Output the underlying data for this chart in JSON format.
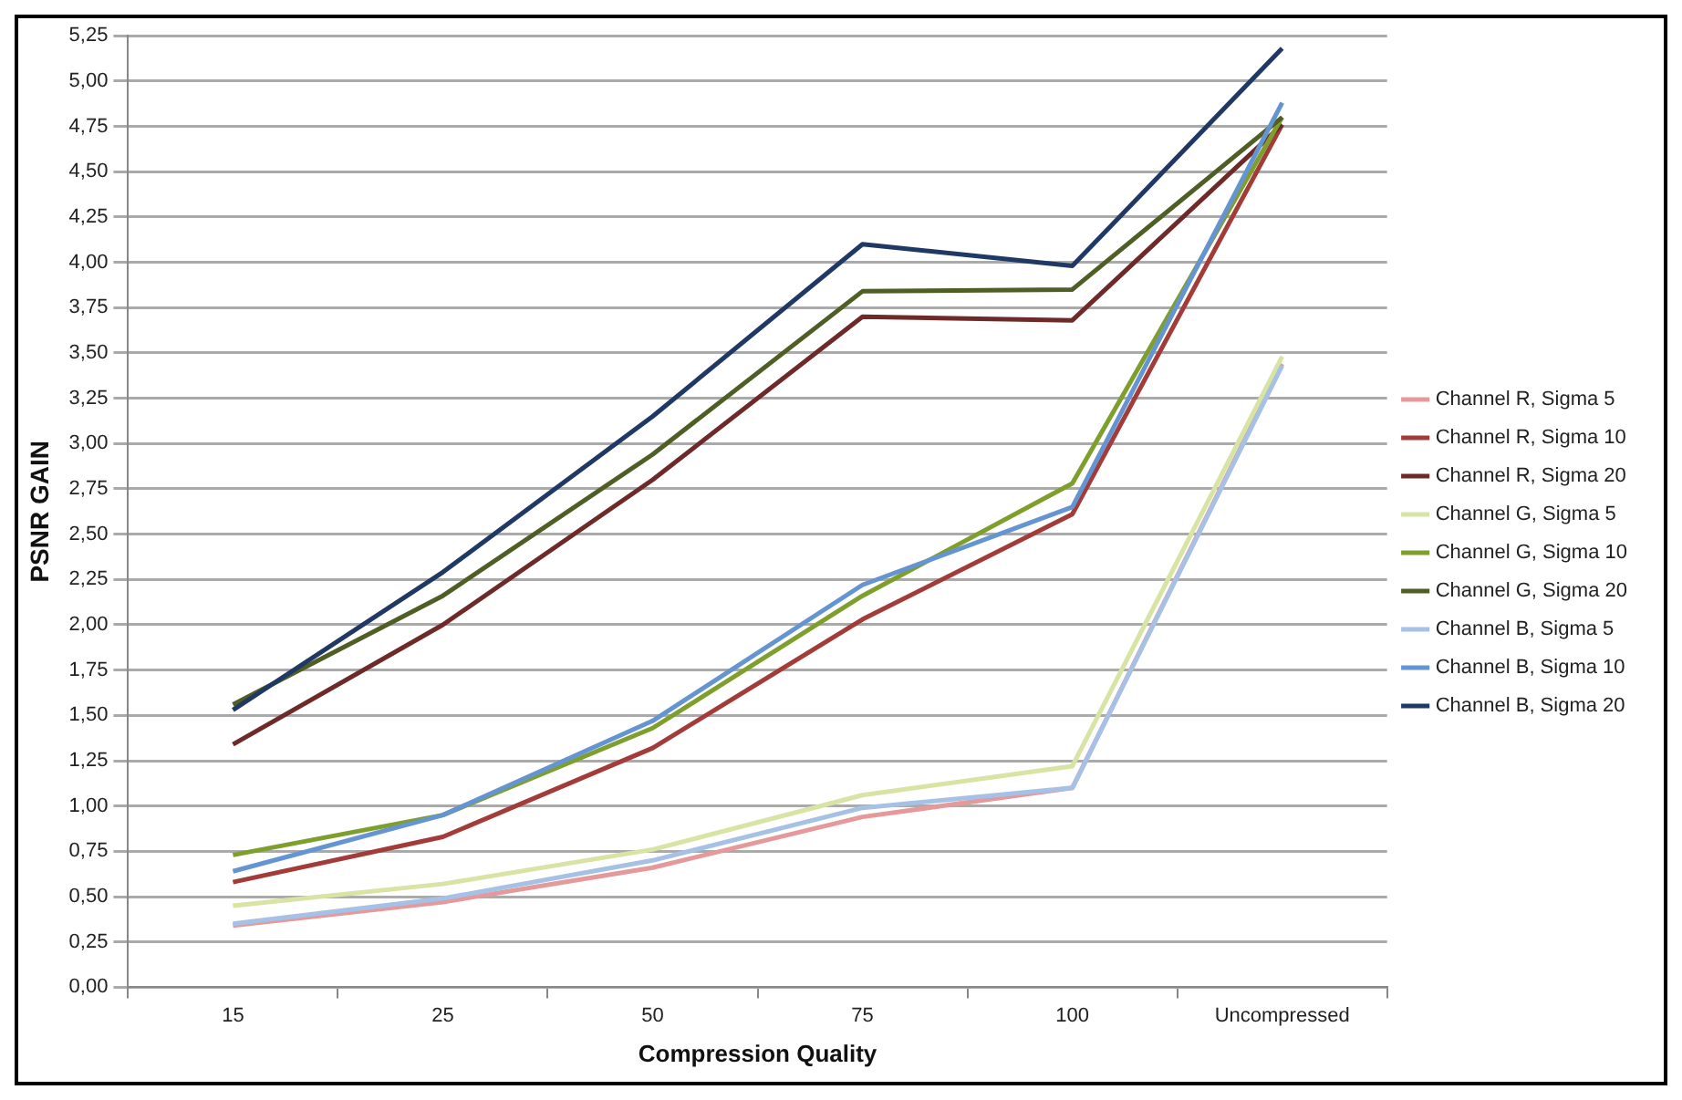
{
  "chart_data": {
    "type": "line",
    "xlabel": "Compression Quality",
    "ylabel": "PSNR GAIN",
    "categories": [
      "15",
      "25",
      "50",
      "75",
      "100",
      "Uncompressed"
    ],
    "series": [
      {
        "name": "Channel R, Sigma 5",
        "color": "#e6999a",
        "values": [
          0.34,
          0.47,
          0.66,
          0.94,
          1.1,
          3.44
        ]
      },
      {
        "name": "Channel R, Sigma 10",
        "color": "#a33b38",
        "values": [
          0.58,
          0.83,
          1.32,
          2.03,
          2.61,
          4.76
        ]
      },
      {
        "name": "Channel R, Sigma 20",
        "color": "#6e2a28",
        "values": [
          1.34,
          2.0,
          2.8,
          3.7,
          3.68,
          4.76
        ]
      },
      {
        "name": "Channel G, Sigma 5",
        "color": "#d7e4a4",
        "values": [
          0.45,
          0.57,
          0.76,
          1.06,
          1.22,
          3.48
        ]
      },
      {
        "name": "Channel G, Sigma 10",
        "color": "#7f9f2d",
        "values": [
          0.73,
          0.95,
          1.43,
          2.16,
          2.78,
          4.8
        ]
      },
      {
        "name": "Channel G, Sigma 20",
        "color": "#4f5e24",
        "values": [
          1.56,
          2.16,
          2.94,
          3.84,
          3.85,
          4.8
        ]
      },
      {
        "name": "Channel B, Sigma 5",
        "color": "#a6c1e6",
        "values": [
          0.35,
          0.49,
          0.7,
          0.99,
          1.1,
          3.43
        ]
      },
      {
        "name": "Channel B, Sigma 10",
        "color": "#6495d2",
        "values": [
          0.64,
          0.95,
          1.47,
          2.22,
          2.65,
          4.88
        ]
      },
      {
        "name": "Channel B, Sigma 20",
        "color": "#1f3864",
        "values": [
          1.53,
          2.29,
          3.15,
          4.1,
          3.98,
          5.18
        ]
      }
    ],
    "ylim": [
      0,
      5.25
    ],
    "yticks": [
      {
        "value": 0,
        "label": "0,00"
      },
      {
        "value": 0.25,
        "label": "0,25"
      },
      {
        "value": 0.5,
        "label": "0,50"
      },
      {
        "value": 0.75,
        "label": "0,75"
      },
      {
        "value": 1,
        "label": "1,00"
      },
      {
        "value": 1.25,
        "label": "1,25"
      },
      {
        "value": 1.5,
        "label": "1,50"
      },
      {
        "value": 1.75,
        "label": "1,75"
      },
      {
        "value": 2,
        "label": "2,00"
      },
      {
        "value": 2.25,
        "label": "2,25"
      },
      {
        "value": 2.5,
        "label": "2,50"
      },
      {
        "value": 2.75,
        "label": "2,75"
      },
      {
        "value": 3,
        "label": "3,00"
      },
      {
        "value": 3.25,
        "label": "3,25"
      },
      {
        "value": 3.5,
        "label": "3,50"
      },
      {
        "value": 3.75,
        "label": "3,75"
      },
      {
        "value": 4,
        "label": "4,00"
      },
      {
        "value": 4.25,
        "label": "4,25"
      },
      {
        "value": 4.5,
        "label": "4,50"
      },
      {
        "value": 4.75,
        "label": "4,75"
      },
      {
        "value": 5,
        "label": "5,00"
      },
      {
        "value": 5.25,
        "label": "5,25"
      }
    ],
    "grid": "y",
    "legend": "right",
    "marker": "none",
    "line_style": "solid"
  }
}
